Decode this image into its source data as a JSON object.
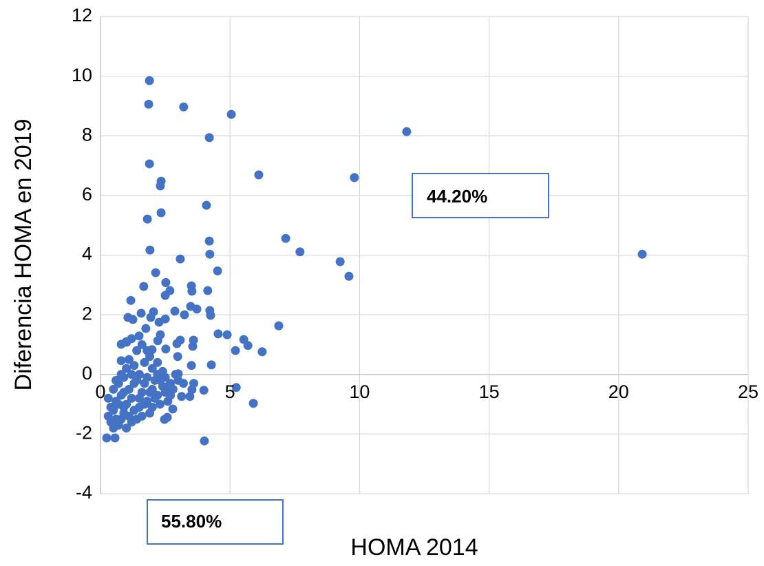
{
  "chart_data": {
    "type": "scatter",
    "x_label": "HOMA 2014",
    "y_label": "Diferencia HOMA en 2019",
    "annotations": [
      {
        "text": "44.20%"
      },
      {
        "text": "55.80%"
      }
    ],
    "color": "#4472c4",
    "xlim": [
      0,
      25
    ],
    "xticks": [
      0,
      5,
      10,
      15,
      20,
      25
    ],
    "ylim": [
      -4,
      12
    ],
    "yticks": [
      -4,
      -2,
      0,
      2,
      4,
      6,
      8,
      10,
      12
    ],
    "grid": true,
    "x": [
      1.89,
      1.86,
      3.21,
      5.05,
      4.2,
      11.82,
      1.89,
      6.11,
      9.8,
      2.34,
      2.31,
      4.09,
      2.34,
      1.81,
      4.2,
      7.15,
      1.91,
      4.22,
      7.7,
      20.91,
      3.08,
      9.25,
      4.52,
      2.13,
      9.59,
      2.52,
      1.67,
      3.51,
      2.68,
      4.14,
      3.53,
      2.5,
      1.17,
      3.48,
      3.72,
      4.22,
      2.05,
      2.87,
      3.24,
      1.57,
      4.25,
      1.06,
      1.25,
      2.5,
      1.94,
      2.26,
      6.88,
      1.75,
      4.54,
      4.89,
      2.31,
      1.49,
      5.53,
      3.08,
      3.59,
      2.21,
      1.01,
      0.8,
      5.69,
      2.95,
      3.56,
      5.21,
      6.24,
      2.52,
      2.98,
      1.99,
      0.8,
      4.28,
      3.51,
      3.0,
      5.24,
      3.99,
      3.53,
      3.13,
      3.45,
      5.9,
      2.79,
      2.58,
      2.47,
      4.01,
      0.24,
      0.56,
      0.3,
      0.4,
      0.5,
      0.6,
      0.5,
      0.7,
      0.8,
      0.9,
      1.0,
      0.8,
      0.7,
      0.9,
      1.1,
      1.2,
      1.3,
      1.4,
      1.5,
      1.6,
      1.7,
      1.8,
      1.9,
      2.0,
      2.1,
      2.2,
      2.3,
      2.4,
      2.5,
      2.6,
      2.7,
      2.8,
      3.0,
      2.9,
      1.0,
      1.1,
      1.3,
      1.5,
      1.7,
      1.9,
      2.0,
      2.2,
      2.4,
      1.2,
      1.0,
      1.4,
      1.6,
      1.8,
      0.8,
      0.6,
      1.2,
      1.0,
      0.9,
      1.1,
      1.3,
      1.5,
      1.6,
      1.8,
      2.0,
      2.1,
      2.3,
      2.5,
      2.6,
      0.4,
      0.6,
      0.7,
      0.9,
      1.4,
      1.7,
      2.2,
      3.2,
      3.6,
      0.3,
      0.5,
      1.2,
      1.9,
      2.7
    ],
    "values": [
      9.85,
      9.06,
      8.97,
      8.72,
      7.94,
      8.14,
      7.06,
      6.69,
      6.6,
      6.48,
      6.32,
      5.67,
      5.42,
      5.21,
      4.47,
      4.56,
      4.17,
      4.03,
      4.11,
      4.03,
      3.87,
      3.78,
      3.47,
      3.41,
      3.29,
      3.08,
      2.95,
      2.97,
      2.81,
      2.81,
      2.79,
      2.65,
      2.48,
      2.28,
      2.19,
      2.14,
      2.1,
      2.12,
      2.0,
      2.05,
      1.98,
      1.91,
      1.84,
      1.86,
      1.91,
      1.75,
      1.63,
      1.54,
      1.36,
      1.33,
      1.33,
      1.29,
      1.17,
      1.15,
      1.15,
      1.13,
      1.08,
      1.01,
      0.97,
      1.03,
      0.94,
      0.8,
      0.76,
      0.85,
      0.6,
      0.83,
      0.46,
      0.32,
      0.3,
      0.02,
      -0.44,
      -0.53,
      -0.51,
      -0.74,
      -0.74,
      -0.97,
      -1.16,
      -1.44,
      -1.51,
      -2.23,
      -2.13,
      -2.13,
      -1.4,
      -1.6,
      -1.2,
      -0.9,
      -0.5,
      -1.7,
      -1.5,
      -1.3,
      -1.0,
      -0.7,
      -0.3,
      -0.1,
      -0.5,
      -0.8,
      -1.2,
      -1.5,
      -1.1,
      -0.6,
      -0.3,
      -0.9,
      -1.3,
      -0.5,
      -0.2,
      -0.7,
      -1.0,
      -0.4,
      -0.6,
      -0.9,
      -0.3,
      -0.5,
      -0.2,
      0.0,
      0.2,
      0.5,
      0.3,
      0.0,
      0.4,
      0.6,
      0.2,
      0.4,
      0.1,
      1.2,
      1.1,
      0.8,
      1.0,
      0.8,
      0.0,
      -0.2,
      -1.6,
      -1.8,
      -1.1,
      -1.4,
      -0.3,
      -0.8,
      -1.4,
      -0.1,
      -1.1,
      -0.8,
      -0.2,
      -0.1,
      -0.4,
      -1.1,
      -1.5,
      -1.0,
      -0.6,
      -0.2,
      -1.0,
      0.0,
      -0.3,
      -0.3,
      -0.8,
      -1.8,
      0.0,
      -0.6,
      -0.7
    ]
  }
}
